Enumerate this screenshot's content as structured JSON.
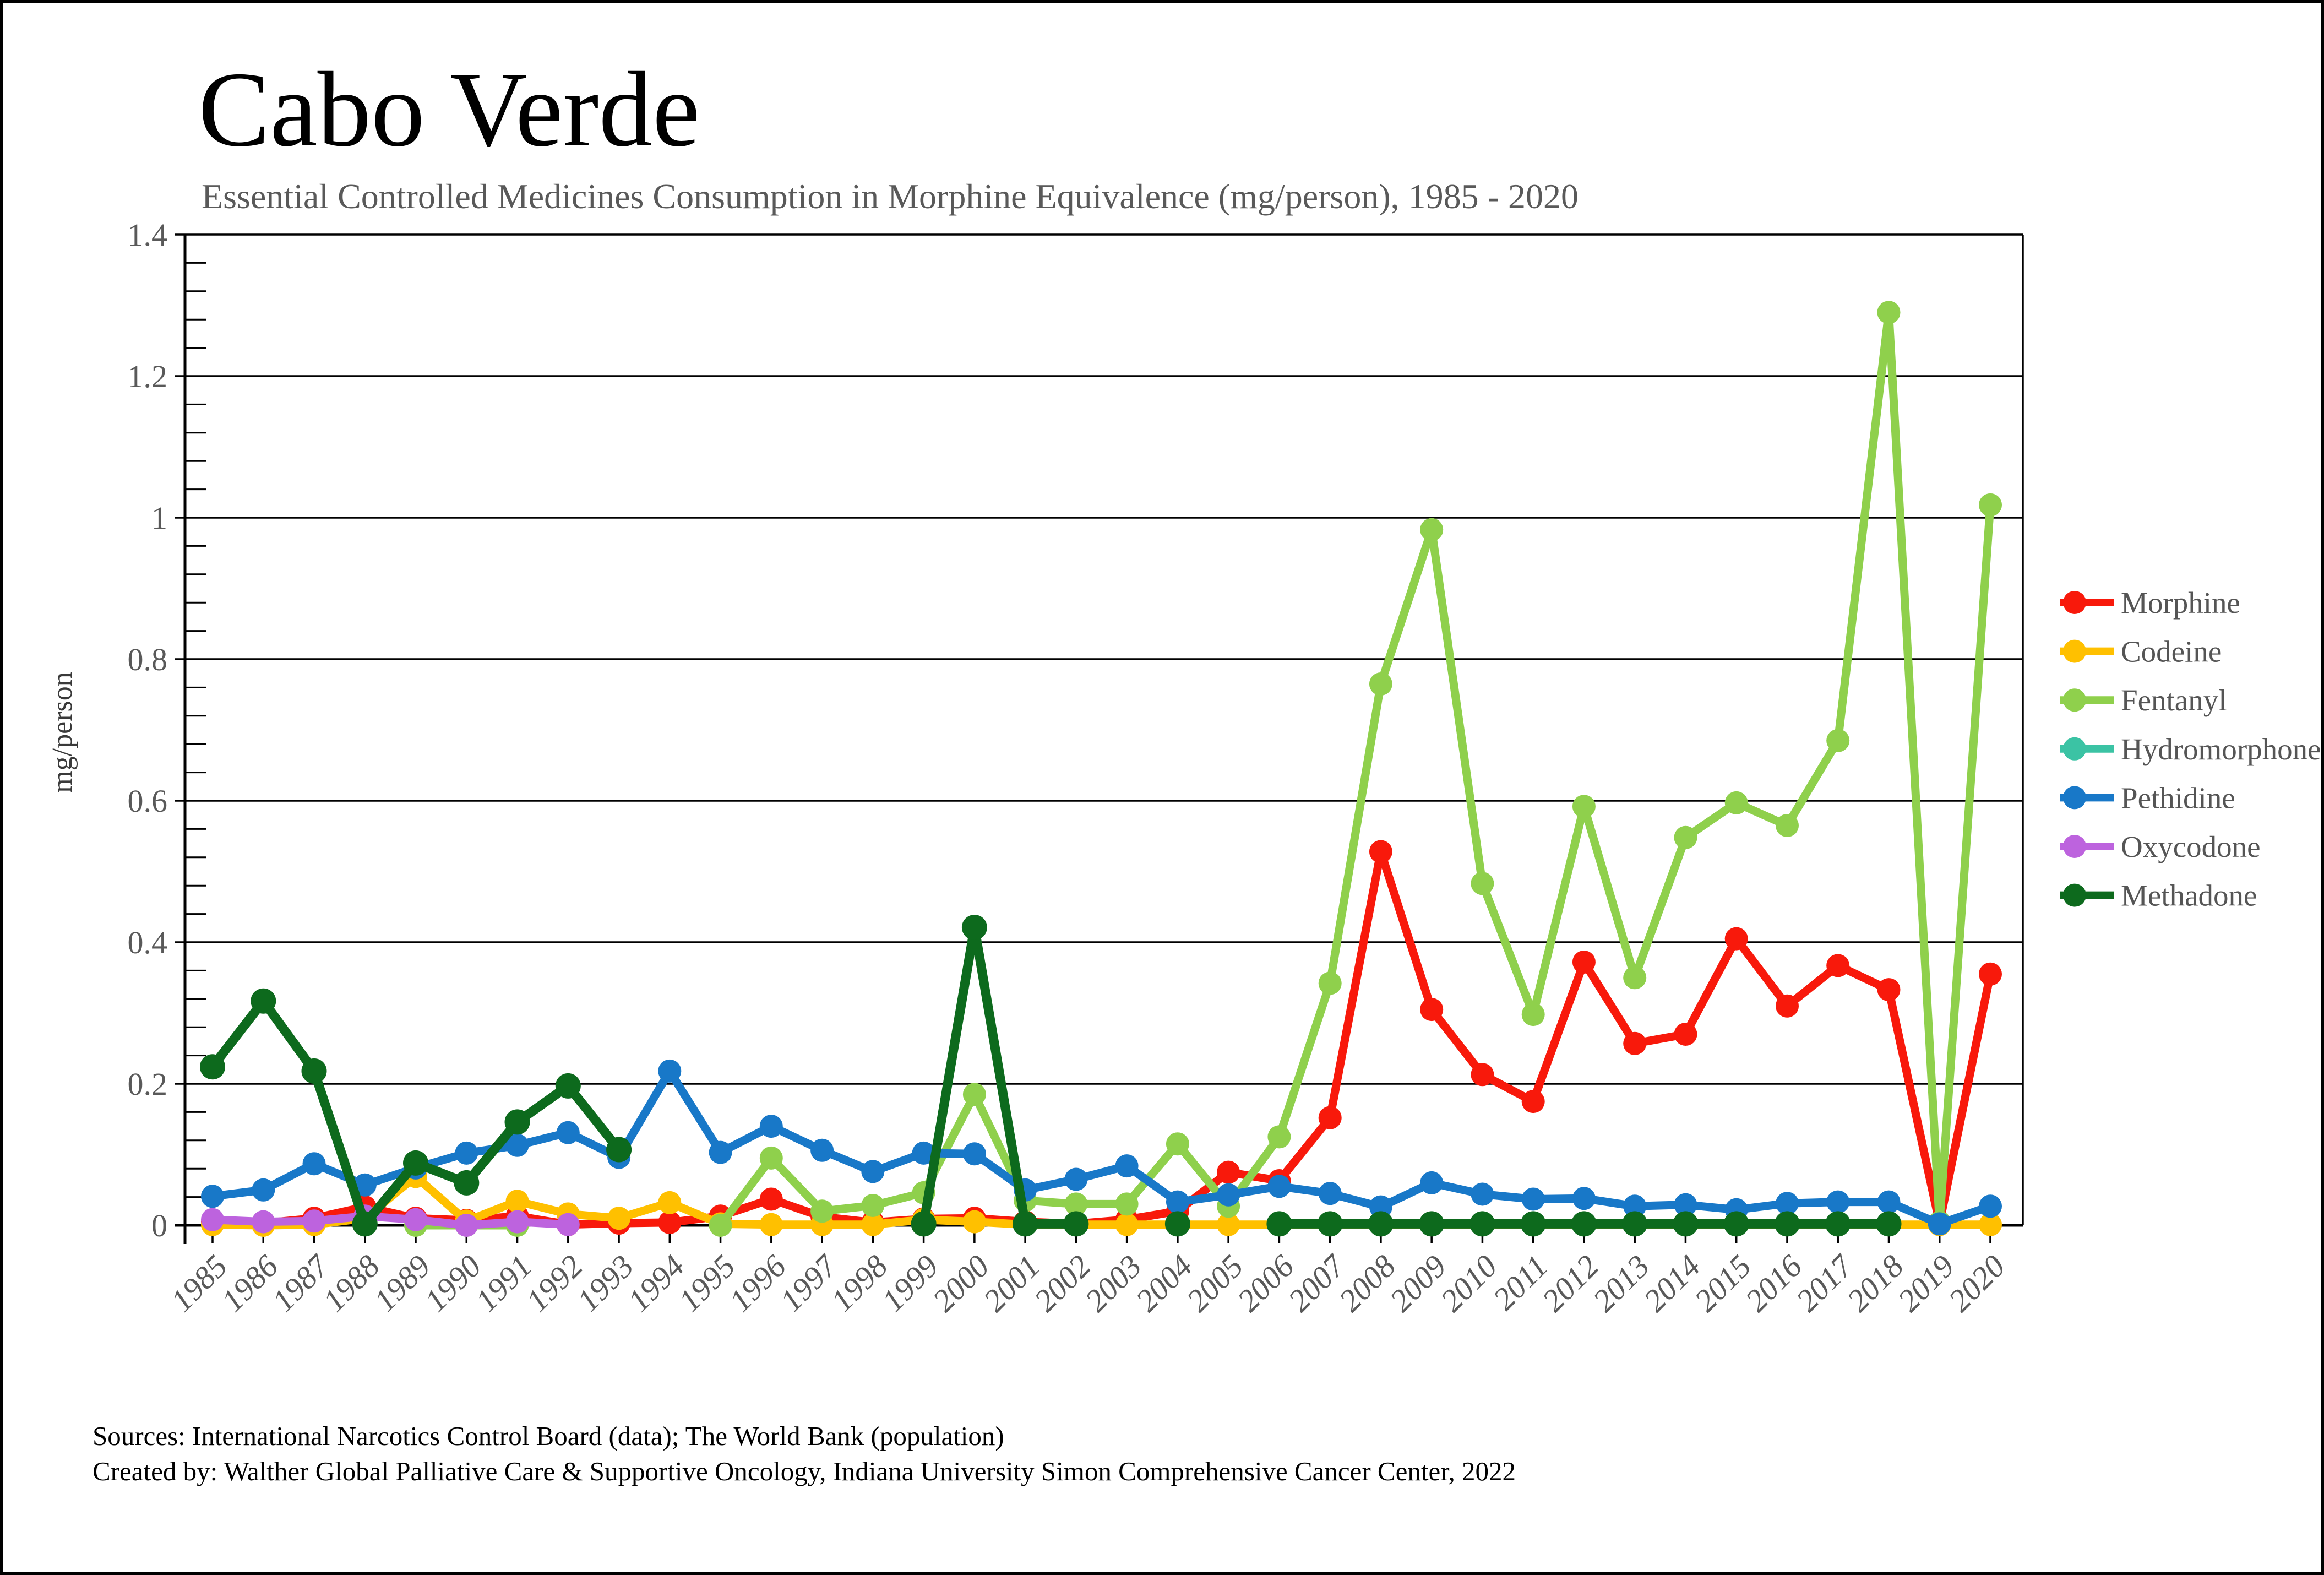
{
  "header": {
    "title": "Cabo Verde",
    "subtitle": "Essential Controlled Medicines Consumption in Morphine Equivalence (mg/person), 1985 - 2020"
  },
  "footer": {
    "sources_line": "Sources: International Narcotics Control Board (data); The World Bank (population)",
    "credit_line": "Created by: Walther Global Palliative Care & Supportive Oncology, Indiana University Simon Comprehensive Cancer Center, 2022"
  },
  "chart_data": {
    "type": "line",
    "title": "Cabo Verde",
    "subtitle": "Essential Controlled Medicines Consumption in Morphine Equivalence (mg/person), 1985 - 2020",
    "xlabel": "",
    "ylabel": "mg/person",
    "ylim": [
      0,
      1.4
    ],
    "ytick_step": 0.2,
    "ytick_labels": [
      "0",
      "0.2",
      "0.4",
      "0.6",
      "0.8",
      "1",
      "1.2",
      "1.4"
    ],
    "grid": "horizontal-major",
    "legend_position": "right",
    "text_color_axis": "#595959",
    "text_color_legend": "#555555",
    "categories": [
      1985,
      1986,
      1987,
      1988,
      1989,
      1990,
      1991,
      1992,
      1993,
      1994,
      1995,
      1996,
      1997,
      1998,
      1999,
      2000,
      2001,
      2002,
      2003,
      2004,
      2005,
      2006,
      2007,
      2008,
      2009,
      2010,
      2011,
      2012,
      2013,
      2014,
      2015,
      2016,
      2017,
      2018,
      2019,
      2020
    ],
    "series": [
      {
        "name": "Morphine",
        "color": "#F8190B",
        "values": [
          0.005,
          0.003,
          0.01,
          0.026,
          0.01,
          0.007,
          0.013,
          0.001,
          0.003,
          0.004,
          0.013,
          0.037,
          0.012,
          0.004,
          0.009,
          0.01,
          0.005,
          0.002,
          0.008,
          0.02,
          0.075,
          0.063,
          0.152,
          0.528,
          0.305,
          0.213,
          0.175,
          0.372,
          0.257,
          0.27,
          0.405,
          0.31,
          0.367,
          0.333,
          0.003,
          0.355
        ]
      },
      {
        "name": "Codeine",
        "color": "#FFC000",
        "values": [
          0.001,
          0.0,
          0.001,
          0.01,
          0.069,
          0.006,
          0.034,
          0.016,
          0.01,
          0.032,
          0.002,
          0.001,
          0.001,
          0.001,
          0.008,
          0.005,
          0.001,
          0.001,
          0.001,
          0.001,
          0.001,
          0.001,
          0.001,
          0.001,
          0.001,
          0.001,
          0.001,
          0.001,
          0.001,
          0.001,
          0.001,
          0.001,
          0.001,
          0.001,
          0.001,
          0.001
        ]
      },
      {
        "name": "Fentanyl",
        "color": "#8FD04C",
        "values": [
          null,
          null,
          null,
          null,
          0.0,
          0.0,
          0.0,
          null,
          null,
          null,
          0.0,
          0.095,
          0.02,
          0.028,
          0.046,
          0.185,
          0.035,
          0.03,
          0.03,
          0.115,
          0.027,
          0.125,
          0.342,
          0.765,
          0.983,
          0.483,
          0.298,
          0.592,
          0.35,
          0.548,
          0.597,
          0.565,
          0.685,
          1.29,
          0.004,
          1.018
        ]
      },
      {
        "name": "Hydromorphone",
        "color": "#3BC3A4",
        "values": [
          null,
          null,
          null,
          null,
          null,
          null,
          null,
          null,
          null,
          null,
          null,
          null,
          null,
          null,
          null,
          null,
          null,
          null,
          null,
          null,
          null,
          null,
          null,
          null,
          null,
          null,
          null,
          null,
          null,
          null,
          null,
          null,
          null,
          null,
          null,
          null
        ]
      },
      {
        "name": "Pethidine",
        "color": "#1878C8",
        "values": [
          0.041,
          0.05,
          0.087,
          0.057,
          0.081,
          0.102,
          0.113,
          0.131,
          0.096,
          0.218,
          0.103,
          0.14,
          0.106,
          0.076,
          0.102,
          0.101,
          0.05,
          0.065,
          0.084,
          0.033,
          0.043,
          0.055,
          0.045,
          0.026,
          0.06,
          0.044,
          0.037,
          0.038,
          0.027,
          0.029,
          0.022,
          0.031,
          0.033,
          0.033,
          0.002,
          0.027
        ]
      },
      {
        "name": "Oxycodone",
        "color": "#BD63DE",
        "values": [
          0.008,
          0.005,
          0.006,
          0.013,
          0.008,
          0.0,
          0.005,
          0.001,
          null,
          null,
          null,
          null,
          null,
          null,
          null,
          null,
          null,
          null,
          null,
          null,
          null,
          null,
          null,
          null,
          null,
          null,
          null,
          null,
          null,
          null,
          null,
          null,
          null,
          null,
          null,
          null
        ]
      },
      {
        "name": "Methadone",
        "color": "#0D6A1D",
        "values": [
          0.224,
          0.317,
          0.218,
          0.002,
          0.088,
          0.06,
          0.146,
          0.197,
          0.107,
          null,
          null,
          null,
          null,
          null,
          0.002,
          0.421,
          0.002,
          0.002,
          null,
          0.002,
          null,
          0.002,
          0.002,
          0.002,
          0.002,
          0.002,
          0.002,
          0.002,
          0.002,
          0.002,
          0.002,
          0.002,
          0.002,
          0.002,
          null,
          null
        ]
      }
    ]
  }
}
